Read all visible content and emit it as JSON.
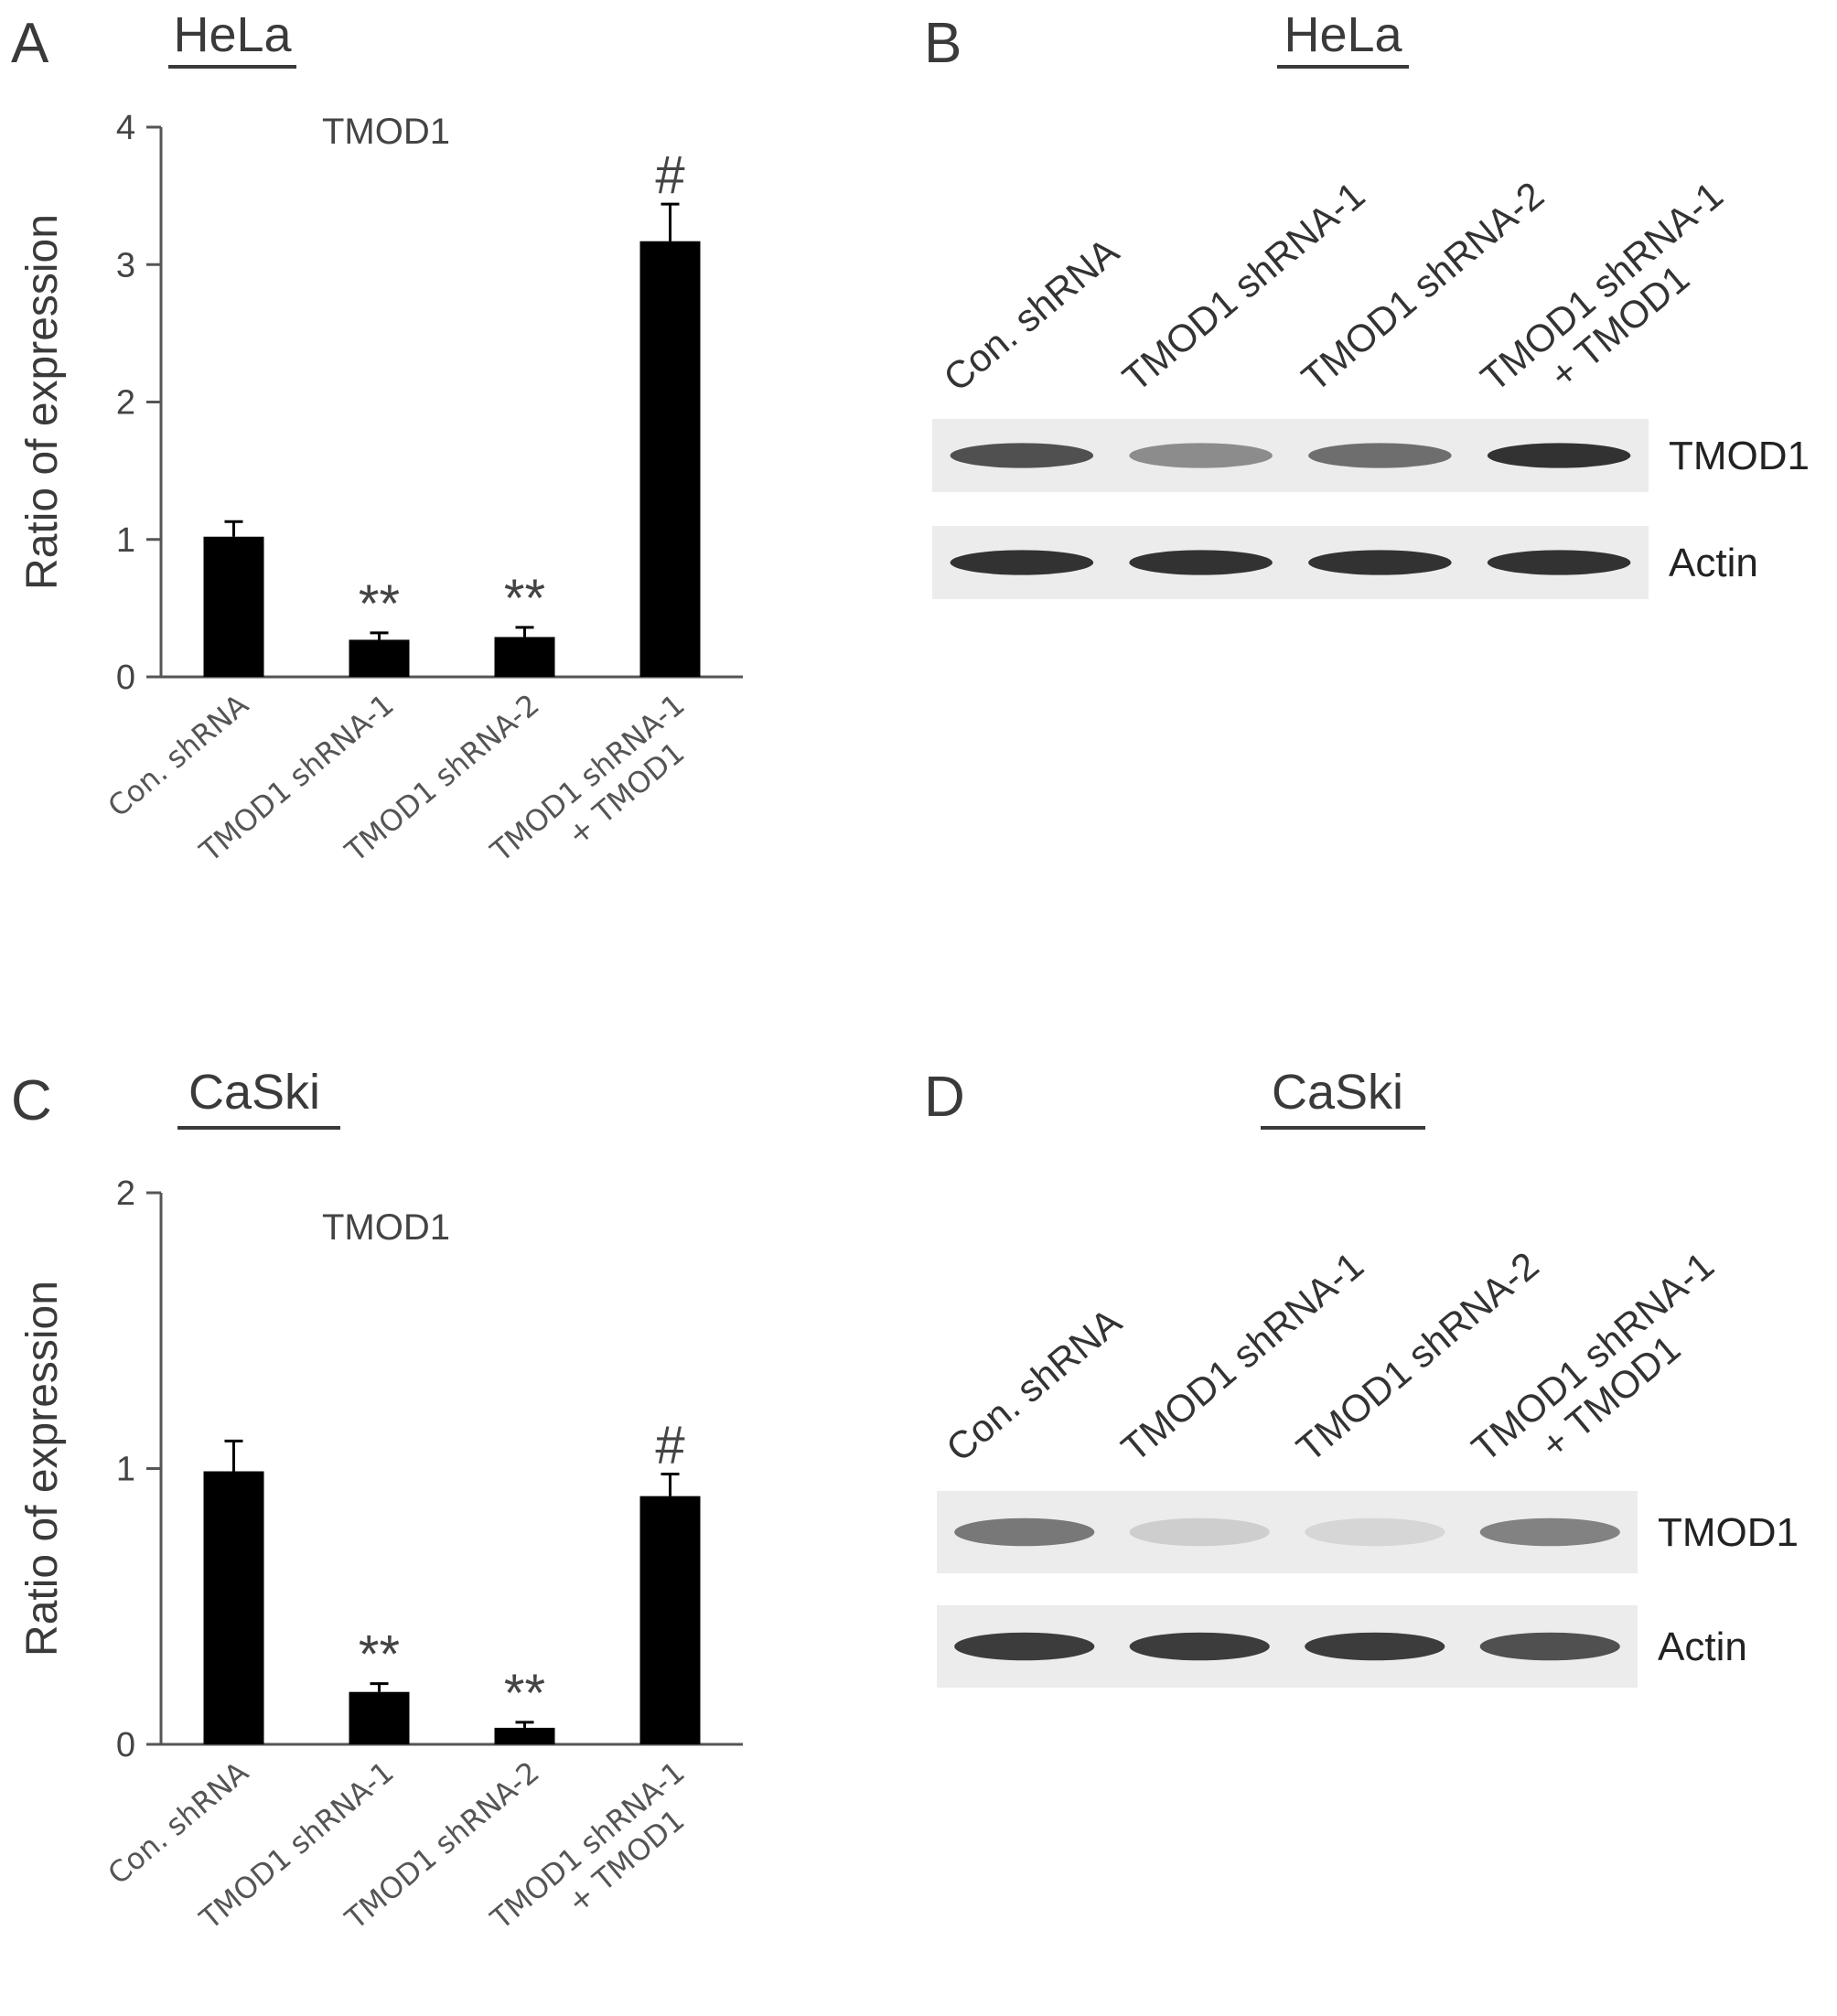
{
  "panels": {
    "A": {
      "letter": "A",
      "cell_line": "HeLa"
    },
    "B": {
      "letter": "B",
      "cell_line": "HeLa"
    },
    "C": {
      "letter": "C",
      "cell_line": "CaSki"
    },
    "D": {
      "letter": "D",
      "cell_line": "CaSki"
    }
  },
  "chart_data": [
    {
      "panel": "A",
      "type": "bar",
      "title": "TMOD1",
      "ylabel": "Ratio of expression",
      "xlabel": "",
      "ylim": [
        0,
        4
      ],
      "yticks": [
        0,
        1,
        2,
        3,
        4
      ],
      "categories": [
        "Con. shRNA",
        "TMOD1 shRNA-1",
        "TMOD1 shRNA-2",
        "TMOD1 shRNA-1 + TMOD1"
      ],
      "category_lines": [
        [
          "Con. shRNA"
        ],
        [
          "TMOD1 shRNA-1"
        ],
        [
          "TMOD1 shRNA-2"
        ],
        [
          "TMOD1 shRNA-1",
          "+ TMOD1"
        ]
      ],
      "values": [
        1.02,
        0.27,
        0.29,
        3.17
      ],
      "errors": [
        0.11,
        0.05,
        0.07,
        0.27
      ],
      "annotations": [
        "",
        "**",
        "**",
        "#"
      ],
      "bar_color": "#000000",
      "grid": false
    },
    {
      "panel": "C",
      "type": "bar",
      "title": "TMOD1",
      "ylabel": "Ratio of expression",
      "xlabel": "",
      "ylim": [
        0,
        2
      ],
      "yticks": [
        0,
        1,
        2
      ],
      "categories": [
        "Con. shRNA",
        "TMOD1 shRNA-1",
        "TMOD1 shRNA-2",
        "TMOD1 shRNA-1 + TMOD1"
      ],
      "category_lines": [
        [
          "Con. shRNA"
        ],
        [
          "TMOD1 shRNA-1"
        ],
        [
          "TMOD1 shRNA-2"
        ],
        [
          "TMOD1 shRNA-1",
          "+ TMOD1"
        ]
      ],
      "values": [
        0.99,
        0.19,
        0.06,
        0.9
      ],
      "errors": [
        0.11,
        0.03,
        0.02,
        0.08
      ],
      "annotations": [
        "",
        "**",
        "**",
        "#"
      ],
      "bar_color": "#000000",
      "grid": false
    }
  ],
  "blots": [
    {
      "panel": "B",
      "lanes": [
        [
          "Con. shRNA"
        ],
        [
          "TMOD1 shRNA-1"
        ],
        [
          "TMOD1 shRNA-2"
        ],
        [
          "TMOD1 shRNA-1",
          "+ TMOD1"
        ]
      ],
      "rows": [
        {
          "label": "TMOD1",
          "intensities": [
            0.75,
            0.45,
            0.6,
            0.9
          ]
        },
        {
          "label": "Actin",
          "intensities": [
            0.9,
            0.9,
            0.9,
            0.9
          ]
        }
      ]
    },
    {
      "panel": "D",
      "lanes": [
        [
          "Con. shRNA"
        ],
        [
          "TMOD1 shRNA-1"
        ],
        [
          "TMOD1 shRNA-2"
        ],
        [
          "TMOD1 shRNA-1",
          "+ TMOD1"
        ]
      ],
      "rows": [
        {
          "label": "TMOD1",
          "intensities": [
            0.55,
            0.12,
            0.08,
            0.5
          ]
        },
        {
          "label": "Actin",
          "intensities": [
            0.85,
            0.85,
            0.85,
            0.75
          ]
        }
      ]
    }
  ]
}
